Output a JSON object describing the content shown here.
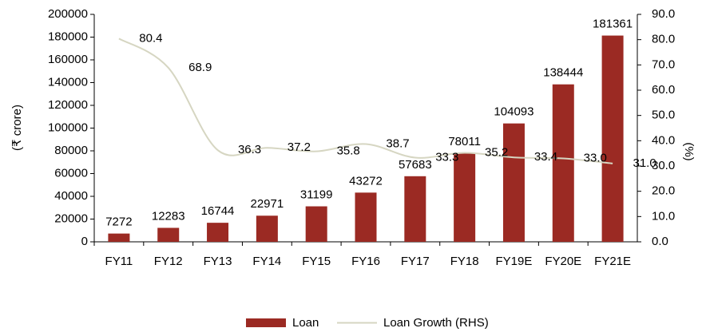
{
  "chart_data": {
    "type": "bar_line",
    "categories": [
      "FY11",
      "FY12",
      "FY13",
      "FY14",
      "FY15",
      "FY16",
      "FY17",
      "FY18",
      "FY19E",
      "FY20E",
      "FY21E"
    ],
    "series": [
      {
        "name": "Loan",
        "type": "bar",
        "color": "#9b2a23",
        "values": [
          7272,
          12283,
          16744,
          22971,
          31199,
          43272,
          57683,
          78011,
          104093,
          138444,
          181361
        ]
      },
      {
        "name": "Loan Growth (RHS)",
        "type": "line",
        "axis": "y2",
        "color": "#d6d6c2",
        "values": [
          80.4,
          68.9,
          36.3,
          37.2,
          35.8,
          38.7,
          33.3,
          35.2,
          33.4,
          33.0,
          31.0
        ],
        "value_labels": [
          "80.4",
          "68.9",
          "36.3",
          "37.2",
          "35.8",
          "38.7",
          "33.3",
          "35.2",
          "33.4",
          "33.0",
          "31.0"
        ]
      }
    ],
    "y_label": "(₹ crore)",
    "y2_label": "(%)",
    "ylim": [
      0,
      200000
    ],
    "yticks": [
      0,
      20000,
      40000,
      60000,
      80000,
      100000,
      120000,
      140000,
      160000,
      180000,
      200000
    ],
    "y2lim": [
      0,
      90
    ],
    "y2ticks": [
      {
        "value": 0,
        "label": "0.0"
      },
      {
        "value": 10,
        "label": "10.0"
      },
      {
        "value": 20,
        "label": "20.0"
      },
      {
        "value": 30,
        "label": "30.0"
      },
      {
        "value": 40,
        "label": "40.0"
      },
      {
        "value": 50,
        "label": "50.0"
      },
      {
        "value": 60,
        "label": "60.0"
      },
      {
        "value": 70,
        "label": "70.0"
      },
      {
        "value": 80,
        "label": "80.0"
      },
      {
        "value": 90,
        "label": "90.0"
      }
    ],
    "legend": "bottom"
  }
}
